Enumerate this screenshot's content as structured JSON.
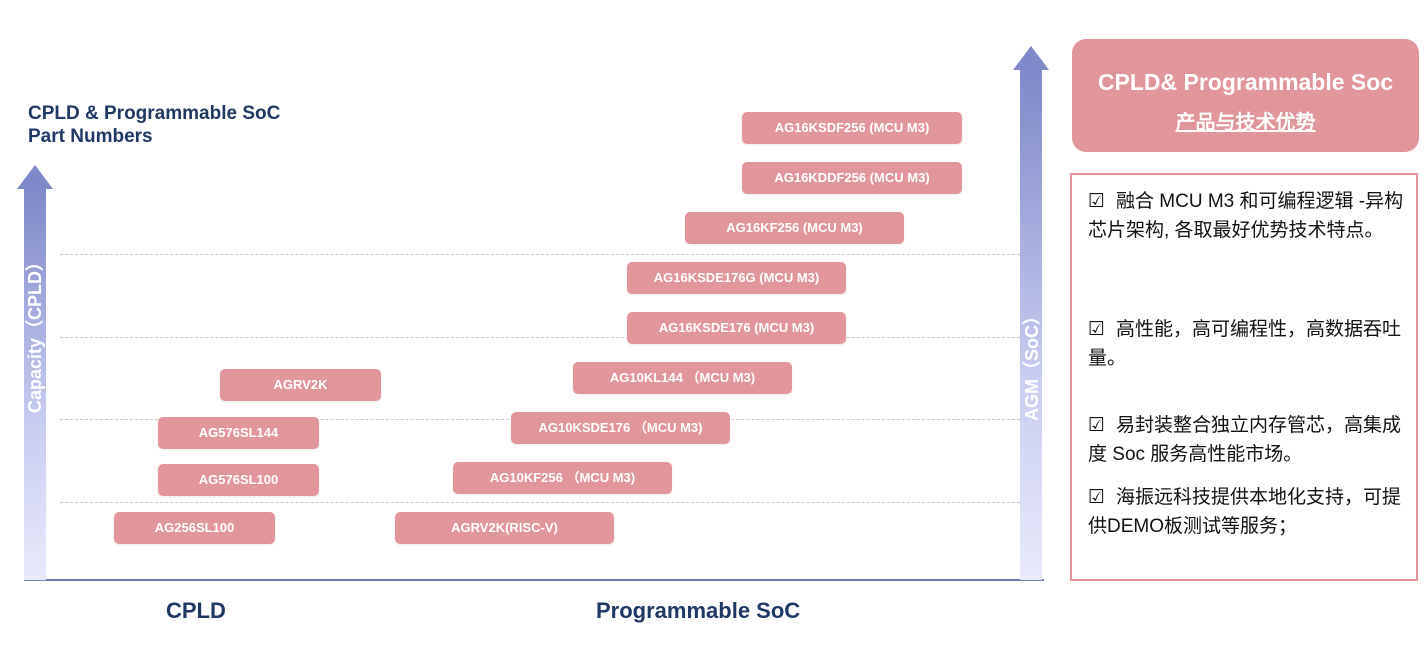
{
  "left_title": [
    "CPLD & Programmable SoC",
    "Part Numbers"
  ],
  "axis_left_label": "Capacity（CPLD）",
  "axis_right_label": "AGM（SoC）",
  "categories": {
    "cpld": "CPLD",
    "soc": "Programmable SoC"
  },
  "cpld_parts": [
    "AGRV2K",
    "AG576SL144",
    "AG576SL100",
    "AG256SL100"
  ],
  "soc_parts": [
    "AG16KSDF256 (MCU M3)",
    "AG16KDDF256 (MCU M3)",
    "AG16KF256 (MCU M3)",
    "AG16KSDE176G (MCU M3)",
    "AG16KSDE176 (MCU M3)",
    "AG10KL144 （MCU M3)",
    "AG10KSDE176 （MCU M3)",
    "AG10KF256 （MCU M3)",
    "AGRV2K(RISC-V)"
  ],
  "panel": {
    "title": "CPLD& Programmable Soc",
    "subtitle": "产品与技术优势",
    "check_symbol": "☑",
    "features": [
      "融合 MCU M3 和可编程逻辑 -异构芯片架构, 各取最好优势技术特点。",
      "高性能，高可编程性，高数据吞吐量。",
      "易封装整合独立内存管芯，高集成度 Soc 服务高性能市场。",
      "海振远科技提供本地化支持，可提供DEMO板测试等服务；"
    ]
  },
  "colors": {
    "part_fill": "#e1969b",
    "title_navy": "#1f3864",
    "axis_blue": "#7f88c9"
  }
}
